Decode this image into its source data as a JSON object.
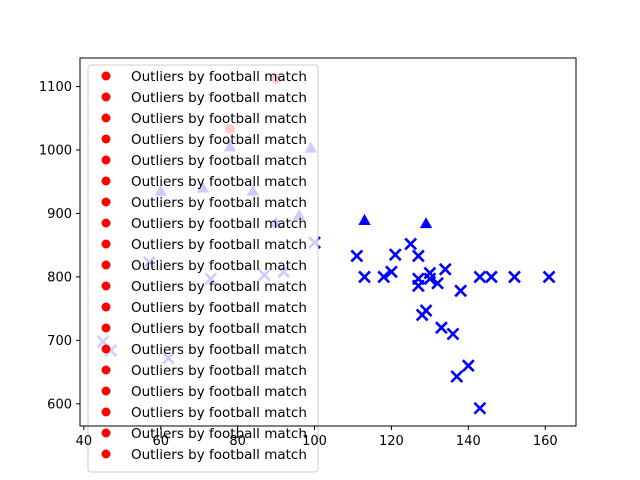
{
  "chart_data": {
    "type": "scatter",
    "title": "",
    "xlabel": "",
    "ylabel": "",
    "xlim": [
      39,
      168
    ],
    "ylim": [
      565,
      1145
    ],
    "xticks": [
      40,
      60,
      80,
      100,
      120,
      140,
      160
    ],
    "yticks": [
      600,
      700,
      800,
      900,
      1000,
      1100
    ],
    "grid": false,
    "legend": {
      "placement": "upper-left",
      "entries": [
        "Outliers by football match",
        "Outliers by football match",
        "Outliers by football match",
        "Outliers by football match",
        "Outliers by football match",
        "Outliers by football match",
        "Outliers by football match",
        "Outliers by football match",
        "Outliers by football match",
        "Outliers by football match",
        "Outliers by football match",
        "Outliers by football match",
        "Outliers by football match",
        "Outliers by football match",
        "Outliers by football match",
        "Outliers by football match",
        "Outliers by football match",
        "Outliers by football match",
        "Outliers by football match"
      ],
      "marker_color": "#ff0000"
    },
    "series": [
      {
        "marker": "circle",
        "color": "#ff0000",
        "points": [
          [
            78,
            1033
          ],
          [
            90,
            1112
          ]
        ]
      },
      {
        "marker": "triangle",
        "color": "#0000ff",
        "points": [
          [
            60,
            935
          ],
          [
            71,
            940
          ],
          [
            78,
            1005
          ],
          [
            84,
            935
          ],
          [
            90,
            885
          ],
          [
            96,
            897
          ],
          [
            99,
            1003
          ],
          [
            113,
            889
          ],
          [
            129,
            884
          ]
        ]
      },
      {
        "marker": "x",
        "color": "#0000ff",
        "points": [
          [
            45,
            698
          ],
          [
            47,
            684
          ],
          [
            57,
            823
          ],
          [
            62,
            672
          ],
          [
            73,
            797
          ],
          [
            87,
            803
          ],
          [
            92,
            808
          ],
          [
            100,
            854
          ],
          [
            111,
            833
          ],
          [
            113,
            800
          ],
          [
            118,
            800
          ],
          [
            120,
            808
          ],
          [
            121,
            835
          ],
          [
            125,
            852
          ],
          [
            127,
            786
          ],
          [
            127,
            797
          ],
          [
            127,
            833
          ],
          [
            128,
            740
          ],
          [
            129,
            747
          ],
          [
            130,
            806
          ],
          [
            130,
            797
          ],
          [
            132,
            790
          ],
          [
            133,
            720
          ],
          [
            134,
            812
          ],
          [
            136,
            710
          ],
          [
            137,
            643
          ],
          [
            138,
            778
          ],
          [
            140,
            660
          ],
          [
            143,
            800
          ],
          [
            143,
            593
          ],
          [
            146,
            800
          ],
          [
            152,
            800
          ],
          [
            161,
            800
          ]
        ]
      }
    ]
  }
}
